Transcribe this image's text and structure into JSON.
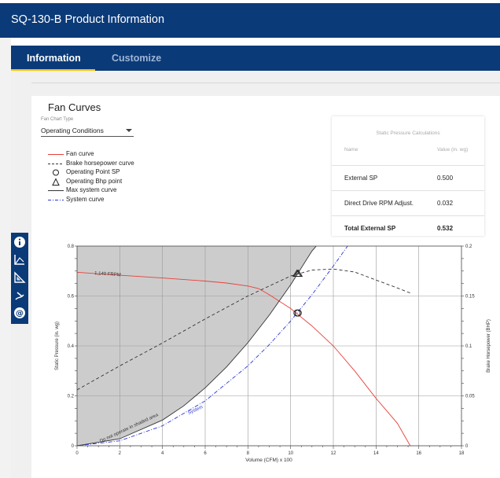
{
  "header": {
    "title": "SQ-130-B Product Information"
  },
  "tabs": [
    {
      "label": "Information",
      "active": true
    },
    {
      "label": "Customize",
      "active": false
    }
  ],
  "fan_curves": {
    "title": "Fan Curves",
    "chart_type_label": "Fan Chart Type",
    "chart_type_value": "Operating Conditions",
    "legend": [
      {
        "label": "Fan curve",
        "style": "red-solid"
      },
      {
        "label": "Brake horsepower curve",
        "style": "black-dashed"
      },
      {
        "label": "Operating Point SP",
        "style": "circle"
      },
      {
        "label": "Operating Bhp point",
        "style": "triangle"
      },
      {
        "label": "Max system curve",
        "style": "gray-solid"
      },
      {
        "label": "System curve",
        "style": "blue-dashdot"
      }
    ]
  },
  "static_pressure": {
    "title": "Static Pressure Calculations",
    "col_name": "Name",
    "col_value": "Value (in. wg)",
    "rows": [
      {
        "name": "External SP",
        "value": "0.500"
      },
      {
        "name": "Direct Drive RPM Adjust.",
        "value": "0.032"
      },
      {
        "name": "Total External SP",
        "value": "0.532"
      }
    ]
  },
  "toolbar_icons": [
    "info-icon",
    "chart-axes-icon",
    "triangle-ruler-icon",
    "fan-blade-icon",
    "at-sign-icon"
  ],
  "colors": {
    "brand_blue": "#0b3a78",
    "tab_accent": "#ffc107",
    "fan_curve": "#e8403a",
    "system_curve": "#2b36d6",
    "shaded": "#cccccc"
  },
  "chart_data": {
    "type": "line",
    "xlabel": "Volume (CFM) x 100",
    "ylabel": "Static Pressure (in. wg)",
    "y2label": "Brake Horsepower (BHP)",
    "xlim": [
      0,
      18
    ],
    "ylim": [
      0,
      0.8
    ],
    "y2lim": [
      0,
      0.2
    ],
    "x_ticks": [
      "0",
      "2",
      "4",
      "6",
      "8",
      "10",
      "12",
      "14",
      "16",
      "18"
    ],
    "y_ticks": [
      "0",
      "0.2",
      "0.4",
      "0.6",
      "0.8"
    ],
    "y2_ticks": [
      "0",
      "0.05",
      "0.1",
      "0.15",
      "0.2"
    ],
    "grid": true,
    "annotations": {
      "rpm": "1,140 FRPM",
      "system": "System",
      "shaded_zone": "Do not operate in shaded area"
    },
    "series": [
      {
        "name": "Fan curve",
        "x": [
          0,
          2,
          4,
          6,
          7,
          8,
          8.5,
          9,
          10,
          11,
          12,
          13,
          14,
          15,
          15.6
        ],
        "y": [
          0.695,
          0.683,
          0.672,
          0.66,
          0.652,
          0.64,
          0.63,
          0.605,
          0.55,
          0.48,
          0.4,
          0.3,
          0.19,
          0.09,
          0.0
        ]
      },
      {
        "name": "Brake horsepower curve",
        "x": [
          0,
          2,
          4,
          6,
          8,
          10,
          11,
          12,
          13,
          14,
          15,
          15.6
        ],
        "y": [
          0.056,
          0.08,
          0.103,
          0.127,
          0.15,
          0.17,
          0.176,
          0.177,
          0.174,
          0.166,
          0.158,
          0.153
        ]
      },
      {
        "name": "Max system curve",
        "x": [
          0,
          2,
          4,
          5,
          6,
          7,
          8,
          9,
          10,
          11,
          11.2
        ],
        "y": [
          0.0,
          0.028,
          0.103,
          0.16,
          0.232,
          0.316,
          0.413,
          0.523,
          0.645,
          0.78,
          0.8
        ]
      },
      {
        "name": "System curve",
        "x": [
          0,
          2,
          4,
          6,
          8,
          9,
          10,
          10.3,
          11,
          12,
          13,
          13.3
        ],
        "y": [
          0.0,
          0.02,
          0.08,
          0.18,
          0.32,
          0.405,
          0.5,
          0.532,
          0.605,
          0.72,
          0.84,
          0.88
        ]
      }
    ],
    "operating_point_sp": {
      "x": 10.3,
      "y": 0.532
    },
    "operating_bhp_point": {
      "x": 10.3,
      "y": 0.172
    }
  }
}
